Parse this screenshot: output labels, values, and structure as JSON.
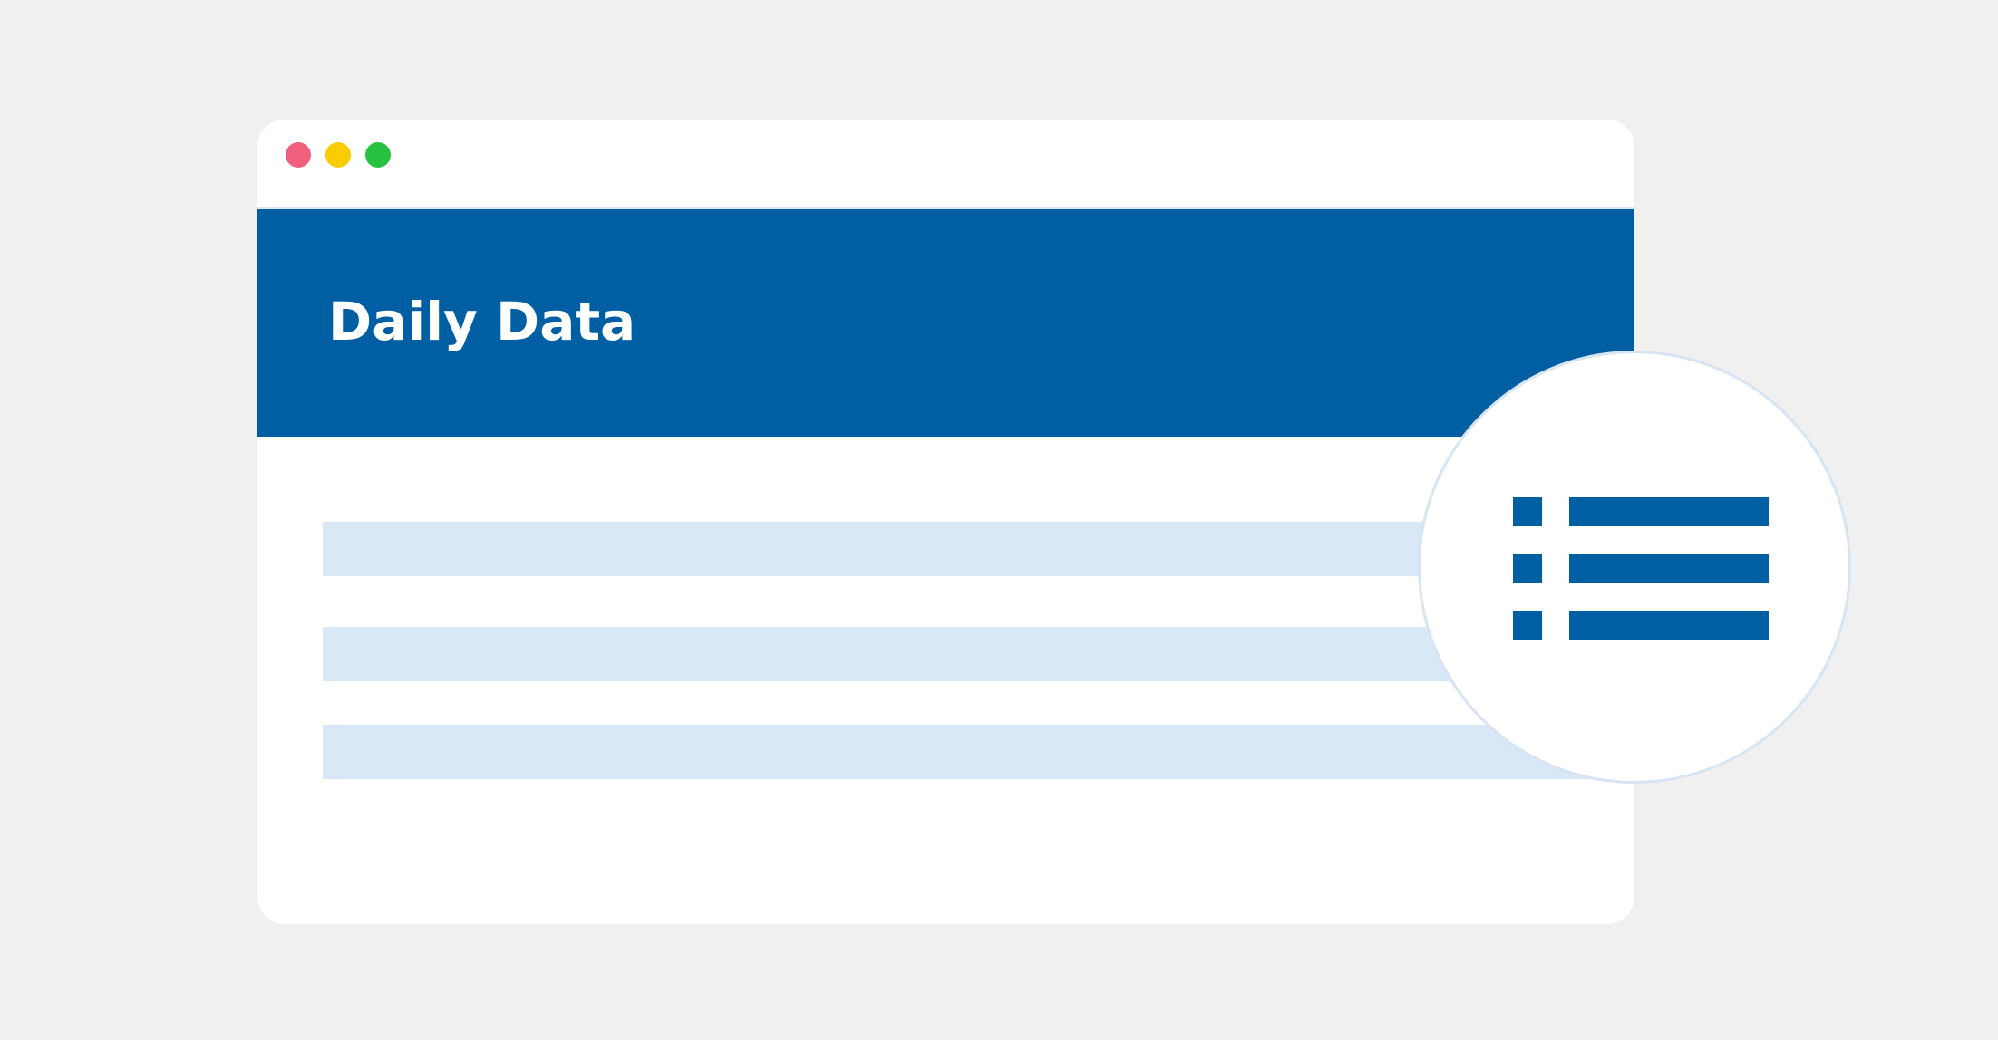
{
  "window": {
    "controls": [
      {
        "name": "close",
        "color": "#f0607c"
      },
      {
        "name": "minimize",
        "color": "#f9cc00"
      },
      {
        "name": "maximize",
        "color": "#27c23f"
      }
    ]
  },
  "banner": {
    "title": "Daily Data",
    "background": "#005ea3"
  },
  "content": {
    "rows": 3,
    "row_color": "#d9e8f6"
  },
  "badge": {
    "icon": "list-icon",
    "icon_color": "#005ea3"
  }
}
